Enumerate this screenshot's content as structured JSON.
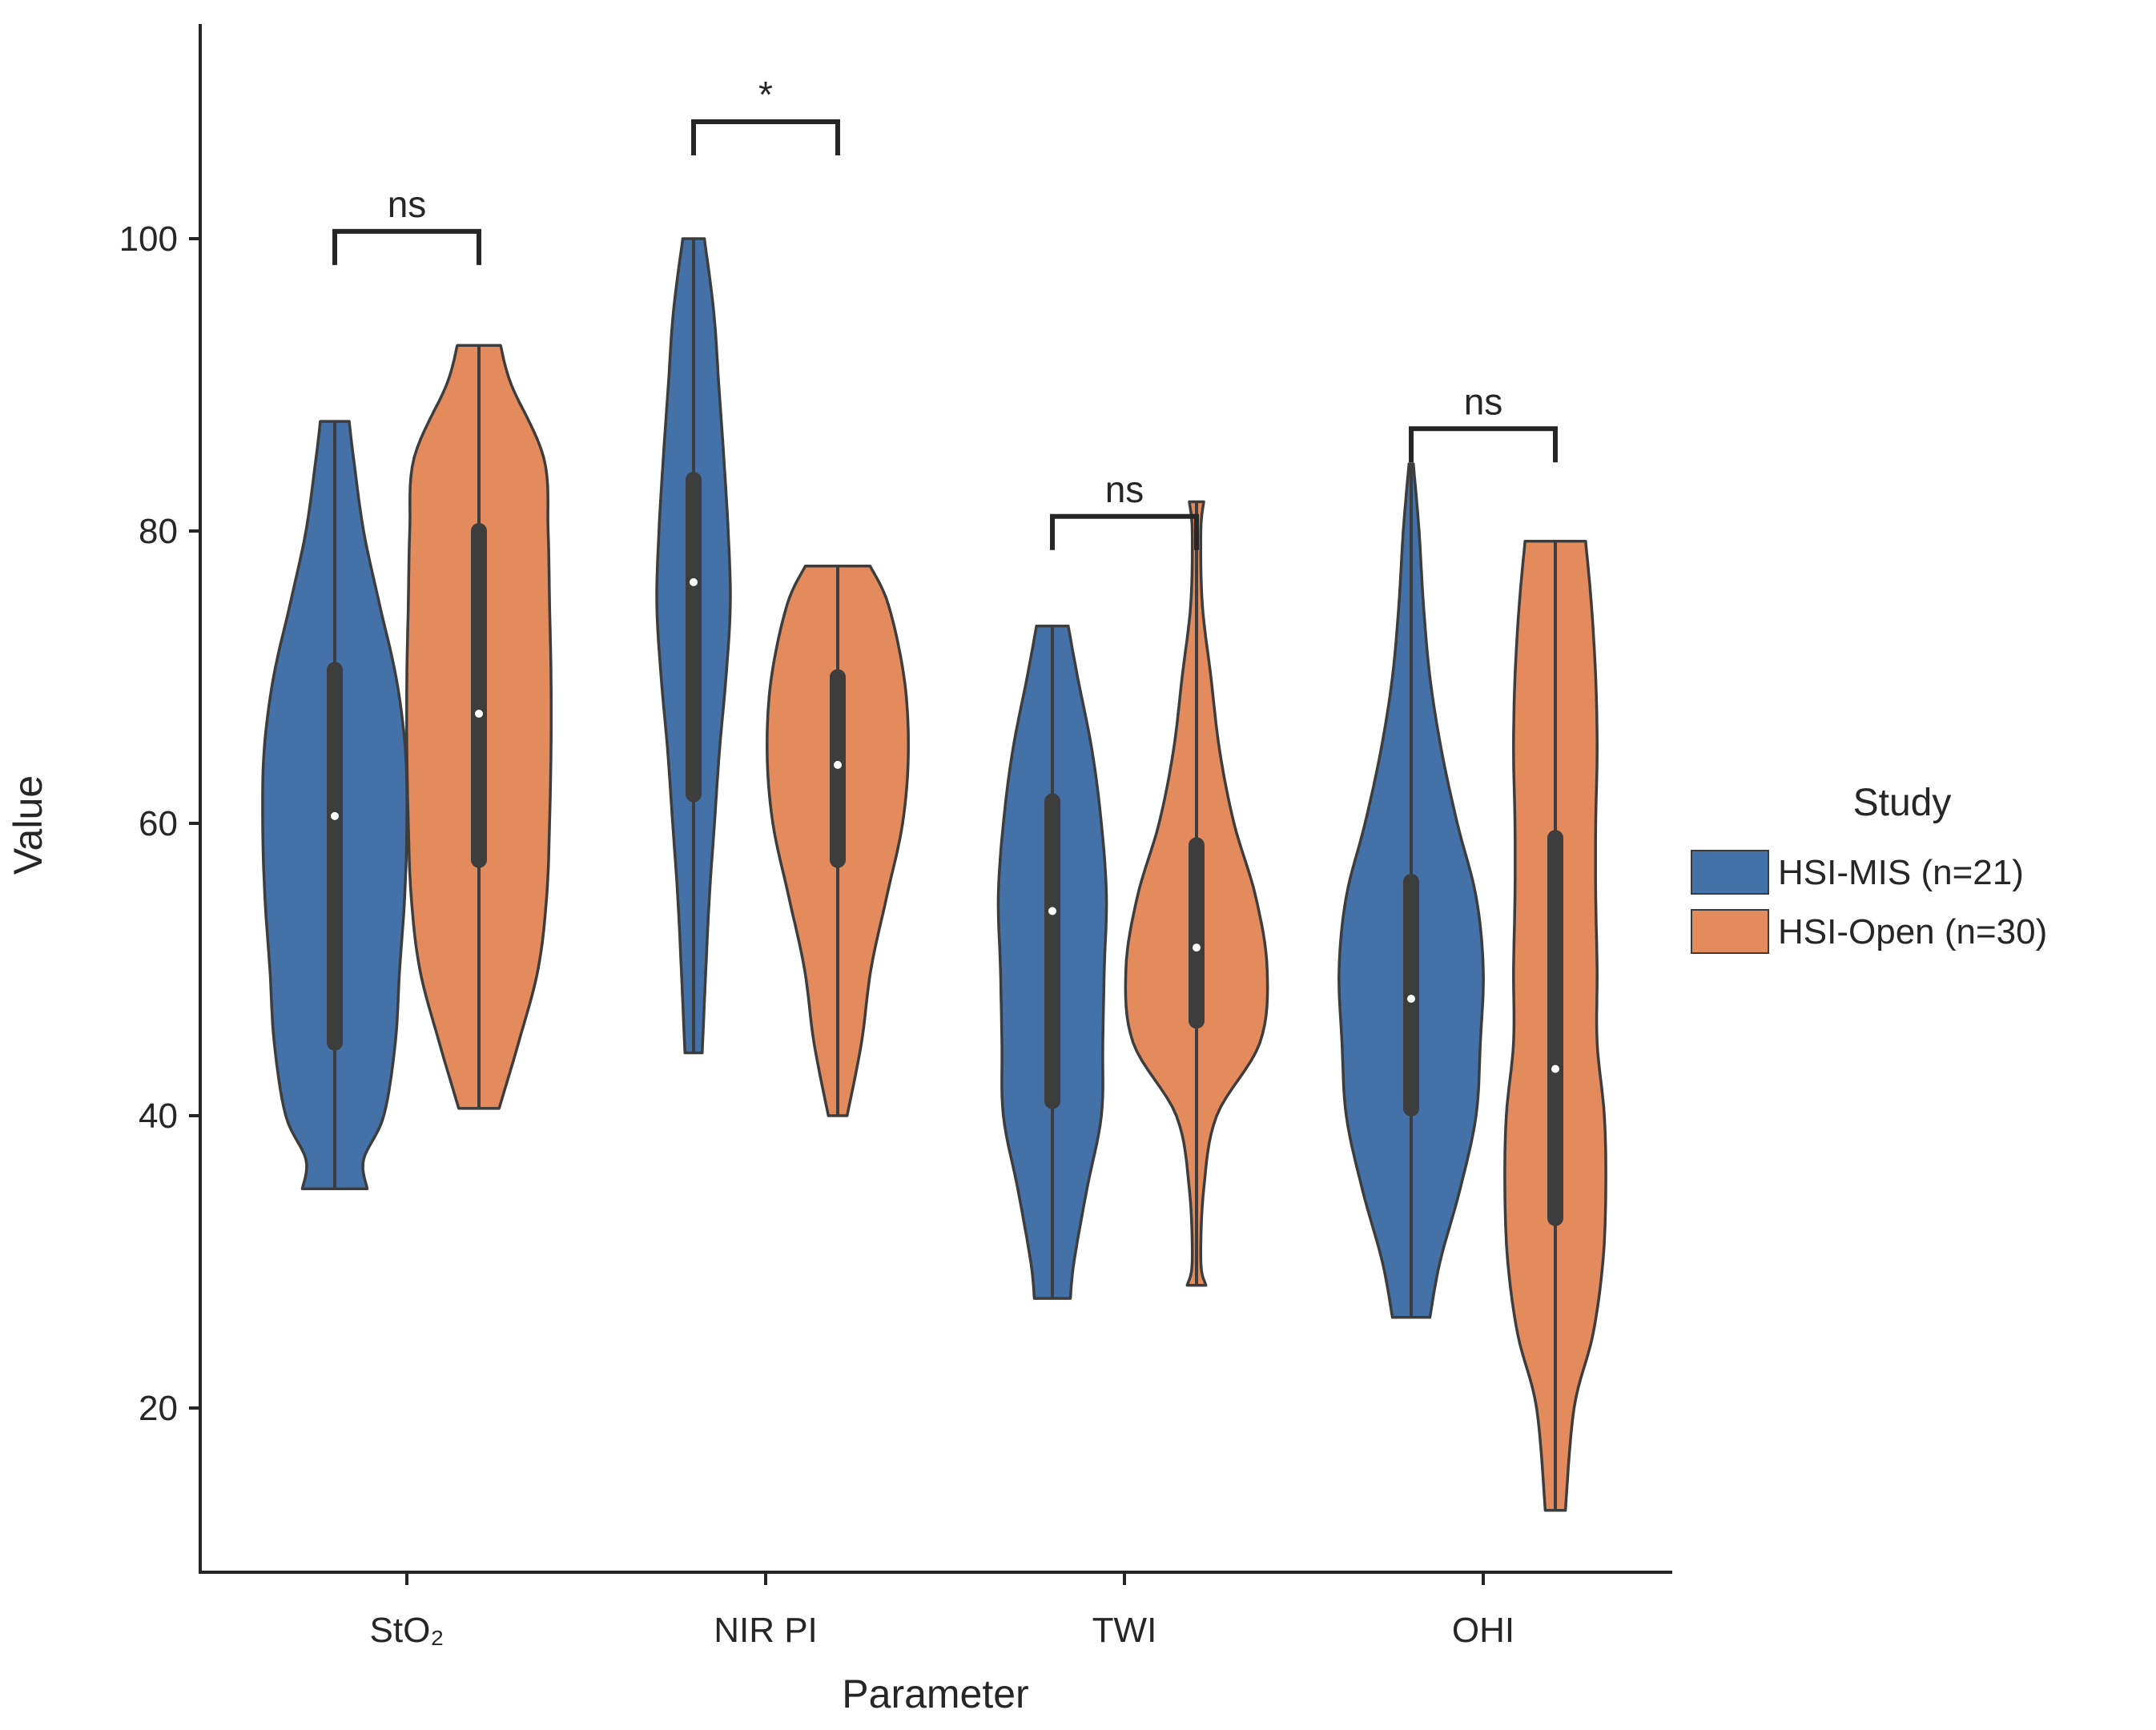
{
  "chart_data": {
    "type": "violin",
    "xlabel": "Parameter",
    "ylabel": "Value",
    "ylim": [
      10,
      116
    ],
    "yticks": [
      20,
      40,
      60,
      80,
      100
    ],
    "categories": [
      "StO₂",
      "NIR PI",
      "TWI",
      "OHI"
    ],
    "legend": {
      "title": "Study",
      "position": "center-right",
      "entries": [
        {
          "label": "HSI-MIS (n=21)",
          "color": "#4472A8"
        },
        {
          "label": "HSI-Open (n=30)",
          "color": "#E48B5E"
        }
      ]
    },
    "series": [
      {
        "name": "HSI-MIS (n=21)",
        "color": "#4472A8",
        "violins": [
          {
            "category": "StO₂",
            "min": 35,
            "max": 87.5,
            "q1": 45,
            "median": 60.5,
            "q3": 70.5,
            "profile": [
              [
                35,
                0.45
              ],
              [
                37,
                0.4
              ],
              [
                40,
                0.68
              ],
              [
                45,
                0.84
              ],
              [
                50,
                0.9
              ],
              [
                55,
                0.97
              ],
              [
                60,
                1.0
              ],
              [
                65,
                0.98
              ],
              [
                70,
                0.85
              ],
              [
                75,
                0.62
              ],
              [
                80,
                0.4
              ],
              [
                85,
                0.26
              ],
              [
                87.5,
                0.2
              ]
            ]
          },
          {
            "category": "NIR PI",
            "min": 44.3,
            "max": 100,
            "q1": 62,
            "median": 76.5,
            "q3": 83.5,
            "profile": [
              [
                44.3,
                0.12
              ],
              [
                50,
                0.17
              ],
              [
                55,
                0.22
              ],
              [
                60,
                0.29
              ],
              [
                65,
                0.36
              ],
              [
                70,
                0.45
              ],
              [
                75,
                0.51
              ],
              [
                80,
                0.48
              ],
              [
                85,
                0.42
              ],
              [
                90,
                0.35
              ],
              [
                95,
                0.28
              ],
              [
                100,
                0.15
              ]
            ]
          },
          {
            "category": "TWI",
            "min": 27.5,
            "max": 73.5,
            "q1": 41,
            "median": 54,
            "q3": 61.5,
            "profile": [
              [
                27.5,
                0.25
              ],
              [
                30,
                0.3
              ],
              [
                35,
                0.48
              ],
              [
                40,
                0.68
              ],
              [
                45,
                0.7
              ],
              [
                50,
                0.72
              ],
              [
                55,
                0.75
              ],
              [
                60,
                0.68
              ],
              [
                65,
                0.55
              ],
              [
                70,
                0.35
              ],
              [
                73.5,
                0.22
              ]
            ]
          },
          {
            "category": "OHI",
            "min": 26.2,
            "max": 84.6,
            "q1": 40.5,
            "median": 48,
            "q3": 56,
            "profile": [
              [
                26.2,
                0.26
              ],
              [
                30,
                0.4
              ],
              [
                35,
                0.68
              ],
              [
                40,
                0.9
              ],
              [
                45,
                0.96
              ],
              [
                50,
                1.0
              ],
              [
                55,
                0.9
              ],
              [
                60,
                0.64
              ],
              [
                65,
                0.42
              ],
              [
                70,
                0.26
              ],
              [
                75,
                0.17
              ],
              [
                80,
                0.11
              ],
              [
                84.6,
                0.03
              ]
            ]
          }
        ]
      },
      {
        "name": "HSI-Open (n=30)",
        "color": "#E48B5E",
        "violins": [
          {
            "category": "StO₂",
            "min": 40.5,
            "max": 92.7,
            "q1": 57.5,
            "median": 67.5,
            "q3": 80,
            "profile": [
              [
                40.5,
                0.28
              ],
              [
                45,
                0.55
              ],
              [
                50,
                0.82
              ],
              [
                55,
                0.94
              ],
              [
                60,
                0.98
              ],
              [
                65,
                1.0
              ],
              [
                70,
                1.0
              ],
              [
                75,
                0.98
              ],
              [
                80,
                0.96
              ],
              [
                85,
                0.9
              ],
              [
                90,
                0.45
              ],
              [
                92.7,
                0.3
              ]
            ]
          },
          {
            "category": "NIR PI",
            "min": 40,
            "max": 77.6,
            "q1": 57.5,
            "median": 64,
            "q3": 70,
            "profile": [
              [
                40,
                0.13
              ],
              [
                45,
                0.33
              ],
              [
                50,
                0.46
              ],
              [
                55,
                0.68
              ],
              [
                60,
                0.9
              ],
              [
                65,
                0.98
              ],
              [
                70,
                0.92
              ],
              [
                75,
                0.7
              ],
              [
                77.6,
                0.45
              ]
            ]
          },
          {
            "category": "TWI",
            "min": 28.4,
            "max": 82,
            "q1": 46.5,
            "median": 51.5,
            "q3": 58.5,
            "profile": [
              [
                28.4,
                0.13
              ],
              [
                30,
                0.06
              ],
              [
                35,
                0.1
              ],
              [
                40,
                0.28
              ],
              [
                45,
                0.88
              ],
              [
                50,
                0.98
              ],
              [
                55,
                0.82
              ],
              [
                60,
                0.52
              ],
              [
                65,
                0.32
              ],
              [
                70,
                0.2
              ],
              [
                75,
                0.08
              ],
              [
                80,
                0.06
              ],
              [
                82,
                0.1
              ]
            ]
          },
          {
            "category": "OHI",
            "min": 13,
            "max": 79.3,
            "q1": 33,
            "median": 43.2,
            "q3": 59,
            "profile": [
              [
                13,
                0.14
              ],
              [
                20,
                0.26
              ],
              [
                25,
                0.52
              ],
              [
                30,
                0.66
              ],
              [
                35,
                0.7
              ],
              [
                40,
                0.68
              ],
              [
                45,
                0.58
              ],
              [
                50,
                0.58
              ],
              [
                55,
                0.56
              ],
              [
                60,
                0.56
              ],
              [
                65,
                0.58
              ],
              [
                70,
                0.56
              ],
              [
                75,
                0.5
              ],
              [
                79.3,
                0.42
              ]
            ]
          }
        ]
      }
    ],
    "annotations": [
      {
        "category": "StO₂",
        "text": "ns",
        "y": 100.5
      },
      {
        "category": "NIR PI",
        "text": "*",
        "y": 108
      },
      {
        "category": "TWI",
        "text": "ns",
        "y": 81
      },
      {
        "category": "OHI",
        "text": "ns",
        "y": 87
      }
    ]
  }
}
